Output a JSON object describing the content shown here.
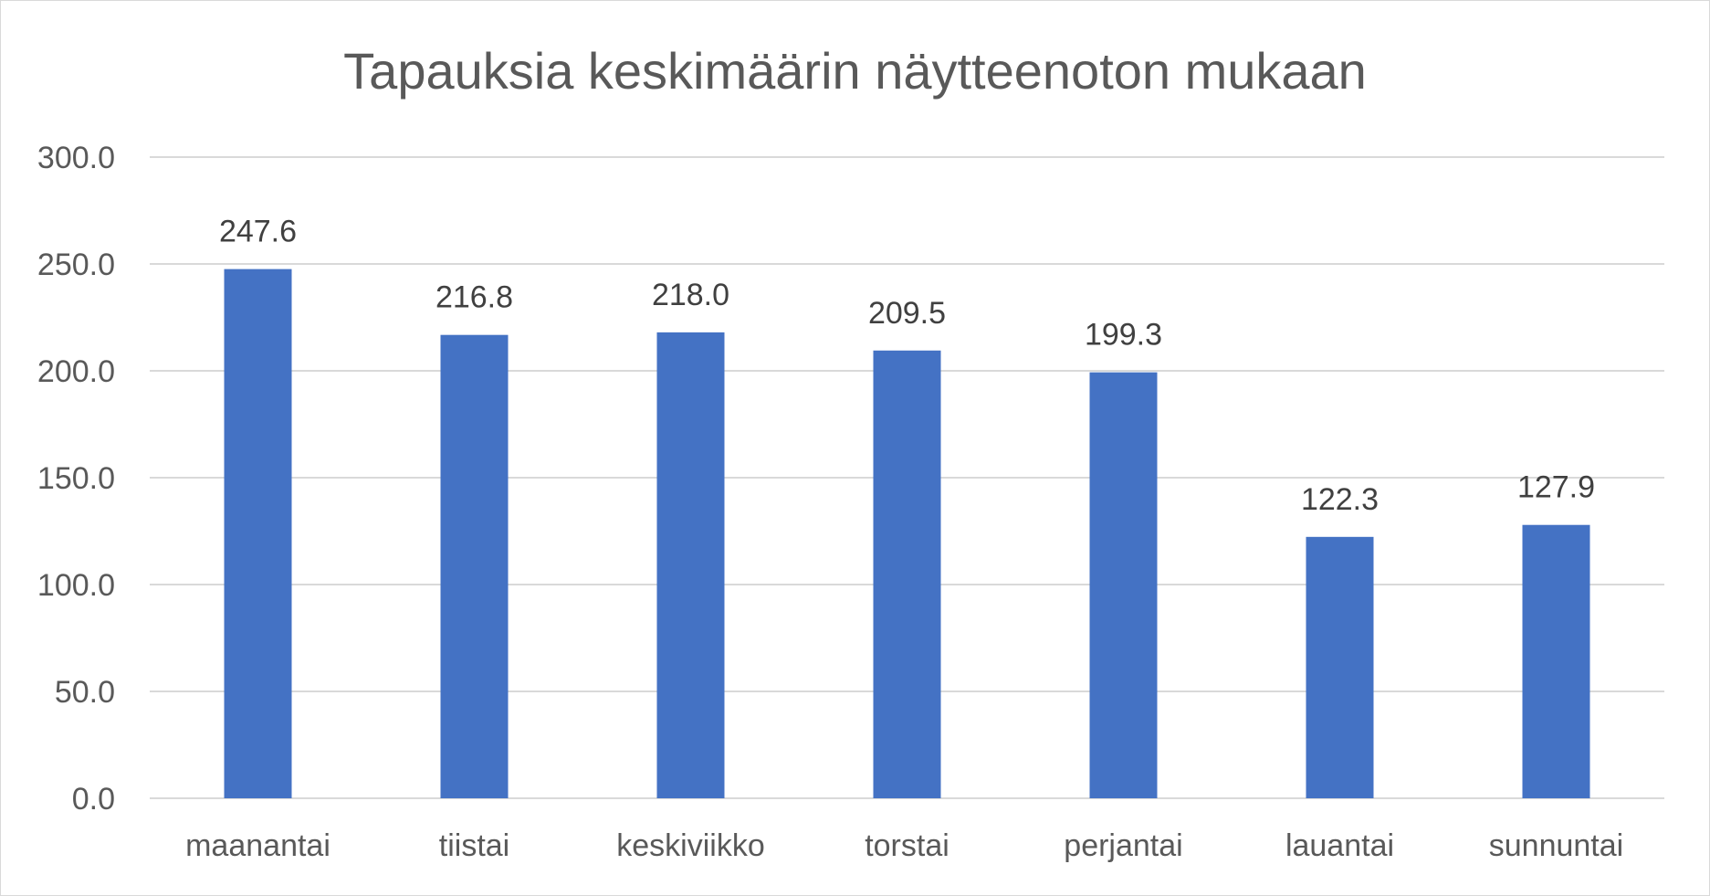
{
  "chart_data": {
    "type": "bar",
    "title": "Tapauksia keskimäärin näytteenoton mukaan",
    "categories": [
      "maanantai",
      "tiistai",
      "keskiviikko",
      "torstai",
      "perjantai",
      "lauantai",
      "sunnuntai"
    ],
    "values": [
      247.6,
      216.8,
      218.0,
      209.5,
      199.3,
      122.3,
      127.9
    ],
    "value_labels": [
      "247.6",
      "216.8",
      "218.0",
      "209.5",
      "199.3",
      "122.3",
      "127.9"
    ],
    "yticks": [
      "0.0",
      "50.0",
      "100.0",
      "150.0",
      "200.0",
      "250.0",
      "300.0"
    ],
    "ylim": [
      0,
      300
    ],
    "ytick_step": 50,
    "grid": true,
    "legend": "none",
    "bar_color": "#4472c4"
  }
}
